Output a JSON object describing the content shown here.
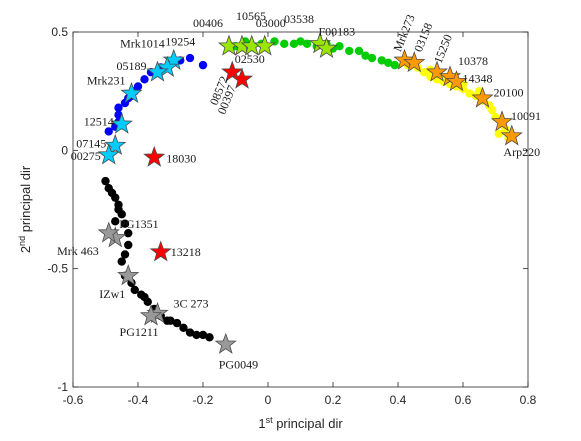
{
  "chart_data": {
    "type": "scatter",
    "xlim": [
      -0.6,
      0.8
    ],
    "ylim": [
      -1,
      0.5
    ],
    "xticks": [
      -0.6,
      -0.4,
      -0.2,
      0,
      0.2,
      0.4,
      0.6,
      0.8
    ],
    "yticks": [
      -1,
      -0.5,
      0,
      0.5
    ],
    "xtick_labels": [
      "-0.6",
      "-0.4",
      "-0.2",
      "0",
      "0.2",
      "0.4",
      "0.6",
      "0.8"
    ],
    "ytick_labels": [
      "-1",
      "-0.5",
      "0",
      "0.5"
    ],
    "xlabel": {
      "main": "1",
      "sup": "st",
      "rest": " principal dir"
    },
    "ylabel": {
      "main": "2",
      "sup": "nd",
      "rest": " principal dir"
    },
    "grid": false,
    "dot_groups": [
      {
        "color": "#0000ff",
        "points": [
          [
            -0.49,
            0.08
          ],
          [
            -0.47,
            0.1
          ],
          [
            -0.46,
            0.12
          ],
          [
            -0.46,
            0.15
          ],
          [
            -0.46,
            0.18
          ],
          [
            -0.44,
            0.2
          ],
          [
            -0.42,
            0.23
          ],
          [
            -0.4,
            0.27
          ],
          [
            -0.38,
            0.3
          ],
          [
            -0.36,
            0.33
          ],
          [
            -0.33,
            0.35
          ],
          [
            -0.3,
            0.37
          ],
          [
            -0.27,
            0.38
          ],
          [
            -0.24,
            0.39
          ],
          [
            -0.2,
            0.36
          ],
          [
            -0.41,
            0.25
          ],
          [
            -0.43,
            0.22
          ]
        ]
      },
      {
        "color": "#00cc00",
        "points": [
          [
            -0.1,
            0.44
          ],
          [
            -0.07,
            0.46
          ],
          [
            -0.05,
            0.44
          ],
          [
            -0.02,
            0.45
          ],
          [
            0.02,
            0.46
          ],
          [
            0.05,
            0.45
          ],
          [
            0.08,
            0.45
          ],
          [
            0.12,
            0.45
          ],
          [
            0.15,
            0.44
          ],
          [
            0.2,
            0.43
          ],
          [
            0.22,
            0.44
          ],
          [
            0.25,
            0.42
          ],
          [
            0.28,
            0.42
          ],
          [
            0.3,
            0.4
          ],
          [
            0.32,
            0.39
          ],
          [
            0.35,
            0.38
          ],
          [
            0.37,
            0.37
          ],
          [
            0.39,
            0.36
          ],
          [
            0.1,
            0.46
          ],
          [
            0.18,
            0.45
          ]
        ]
      },
      {
        "color": "#ffff00",
        "points": [
          [
            0.43,
            0.36
          ],
          [
            0.46,
            0.35
          ],
          [
            0.48,
            0.33
          ],
          [
            0.5,
            0.31
          ],
          [
            0.52,
            0.3
          ],
          [
            0.54,
            0.29
          ],
          [
            0.56,
            0.28
          ],
          [
            0.58,
            0.27
          ],
          [
            0.6,
            0.26
          ],
          [
            0.62,
            0.24
          ],
          [
            0.64,
            0.23
          ],
          [
            0.66,
            0.21
          ],
          [
            0.68,
            0.19
          ],
          [
            0.69,
            0.17
          ],
          [
            0.7,
            0.14
          ],
          [
            0.72,
            0.11
          ],
          [
            0.73,
            0.09
          ],
          [
            0.71,
            0.07
          ],
          [
            0.74,
            0.05
          ],
          [
            0.5,
            0.34
          ],
          [
            0.55,
            0.31
          ],
          [
            0.6,
            0.28
          ],
          [
            0.65,
            0.25
          ]
        ]
      },
      {
        "color": "#000000",
        "points": [
          [
            -0.5,
            -0.13
          ],
          [
            -0.49,
            -0.16
          ],
          [
            -0.48,
            -0.18
          ],
          [
            -0.47,
            -0.2
          ],
          [
            -0.46,
            -0.23
          ],
          [
            -0.45,
            -0.27
          ],
          [
            -0.44,
            -0.31
          ],
          [
            -0.43,
            -0.35
          ],
          [
            -0.43,
            -0.4
          ],
          [
            -0.44,
            -0.44
          ],
          [
            -0.45,
            -0.47
          ],
          [
            -0.44,
            -0.53
          ],
          [
            -0.42,
            -0.56
          ],
          [
            -0.41,
            -0.59
          ],
          [
            -0.39,
            -0.61
          ],
          [
            -0.37,
            -0.64
          ],
          [
            -0.35,
            -0.67
          ],
          [
            -0.33,
            -0.7
          ],
          [
            -0.31,
            -0.72
          ],
          [
            -0.28,
            -0.73
          ],
          [
            -0.26,
            -0.75
          ],
          [
            -0.24,
            -0.77
          ],
          [
            -0.22,
            -0.78
          ],
          [
            -0.2,
            -0.78
          ],
          [
            -0.18,
            -0.79
          ],
          [
            -0.3,
            -0.72
          ],
          [
            -0.38,
            -0.62
          ],
          [
            -0.46,
            -0.25
          ],
          [
            -0.47,
            -0.3
          ]
        ]
      }
    ],
    "star_series": [
      {
        "color": "#00ccff",
        "stars": [
          {
            "x": -0.29,
            "y": 0.38,
            "label": "Mrk1014",
            "label_anchor": "end",
            "label_dx": -9,
            "label_dy": -13,
            "label_rotate": 0
          },
          {
            "x": -0.31,
            "y": 0.35,
            "label": "19254",
            "label_anchor": "start",
            "label_dx": -2,
            "label_dy": -22,
            "label_rotate": 0
          },
          {
            "x": -0.34,
            "y": 0.33,
            "label": "05189",
            "label_anchor": "end",
            "label_dx": -11,
            "label_dy": -2,
            "label_rotate": 0
          },
          {
            "x": -0.42,
            "y": 0.24,
            "label": "Mrk231",
            "label_anchor": "end",
            "label_dx": -6,
            "label_dy": -9,
            "label_rotate": 0
          },
          {
            "x": -0.45,
            "y": 0.11,
            "label": "12514",
            "label_anchor": "end",
            "label_dx": -8,
            "label_dy": 1,
            "label_rotate": 0
          },
          {
            "x": -0.47,
            "y": 0.02,
            "label": "07145",
            "label_anchor": "end",
            "label_dx": -9,
            "label_dy": 2,
            "label_rotate": 0
          },
          {
            "x": -0.49,
            "y": -0.02,
            "label": "00275",
            "label_anchor": "end",
            "label_dx": -8,
            "label_dy": 5,
            "label_rotate": 0
          }
        ]
      },
      {
        "color": "#99e600",
        "stars": [
          {
            "x": -0.12,
            "y": 0.44,
            "label": "00406",
            "label_anchor": "end",
            "label_dx": -6,
            "label_dy": -19,
            "label_rotate": 0
          },
          {
            "x": -0.08,
            "y": 0.44,
            "label": "10565",
            "label_anchor": "start",
            "label_dx": -6,
            "label_dy": -26,
            "label_rotate": 0
          },
          {
            "x": -0.05,
            "y": 0.44,
            "label": "03000",
            "label_anchor": "start",
            "label_dx": 4,
            "label_dy": -19,
            "label_rotate": 0
          },
          {
            "x": -0.01,
            "y": 0.44,
            "label": "02530",
            "label_anchor": "end",
            "label_dx": 0,
            "label_dy": 17,
            "label_rotate": 0
          },
          {
            "x": 0.16,
            "y": 0.45,
            "label": "03538",
            "label_anchor": "end",
            "label_dx": -6,
            "label_dy": -21,
            "label_rotate": 0
          },
          {
            "x": 0.18,
            "y": 0.43,
            "label": "F00183",
            "label_anchor": "start",
            "label_dx": -8,
            "label_dy": -13,
            "label_rotate": 0
          }
        ]
      },
      {
        "color": "#ff9900",
        "stars": [
          {
            "x": 0.42,
            "y": 0.38,
            "label": "Mrk273",
            "label_anchor": "start",
            "label_dx": -4,
            "label_dy": -8,
            "label_rotate": -68
          },
          {
            "x": 0.45,
            "y": 0.37,
            "label": "03158",
            "label_anchor": "start",
            "label_dx": 7,
            "label_dy": -10,
            "label_rotate": -68
          },
          {
            "x": 0.52,
            "y": 0.33,
            "label": "15250",
            "label_anchor": "start",
            "label_dx": 4,
            "label_dy": -8,
            "label_rotate": -68
          },
          {
            "x": 0.56,
            "y": 0.31,
            "label": "10378",
            "label_anchor": "start",
            "label_dx": 8,
            "label_dy": -12,
            "label_rotate": 0
          },
          {
            "x": 0.58,
            "y": 0.29,
            "label": "14348",
            "label_anchor": "start",
            "label_dx": 6,
            "label_dy": 1,
            "label_rotate": 0
          },
          {
            "x": 0.66,
            "y": 0.22,
            "label": "20100",
            "label_anchor": "start",
            "label_dx": 11,
            "label_dy": -2,
            "label_rotate": 0
          },
          {
            "x": 0.72,
            "y": 0.12,
            "label": "10091",
            "label_anchor": "start",
            "label_dx": 9,
            "label_dy": -2,
            "label_rotate": 0
          },
          {
            "x": 0.75,
            "y": 0.06,
            "label": "Arp220",
            "label_anchor": "middle",
            "label_dx": 10,
            "label_dy": 20,
            "label_rotate": 0
          }
        ]
      },
      {
        "color": "#ff0000",
        "stars": [
          {
            "x": -0.11,
            "y": 0.33,
            "label": "08572",
            "label_anchor": "end",
            "label_dx": -4,
            "label_dy": 6,
            "label_rotate": -68
          },
          {
            "x": -0.08,
            "y": 0.3,
            "label": "00397",
            "label_anchor": "end",
            "label_dx": -6,
            "label_dy": 8,
            "label_rotate": -68
          },
          {
            "x": -0.35,
            "y": -0.03,
            "label": "18030",
            "label_anchor": "start",
            "label_dx": 12,
            "label_dy": 5,
            "label_rotate": 0
          },
          {
            "x": -0.33,
            "y": -0.43,
            "label": "13218",
            "label_anchor": "start",
            "label_dx": 10,
            "label_dy": 4,
            "label_rotate": 0
          }
        ]
      },
      {
        "color": "#999999",
        "stars": [
          {
            "x": -0.47,
            "y": -0.37,
            "label": "PG1351",
            "label_anchor": "start",
            "label_dx": 4,
            "label_dy": -10,
            "label_rotate": 0
          },
          {
            "x": -0.49,
            "y": -0.35,
            "label": "Mrk 463",
            "label_anchor": "end",
            "label_dx": -10,
            "label_dy": 22,
            "label_rotate": 0
          },
          {
            "x": -0.43,
            "y": -0.53,
            "label": "IZw1",
            "label_anchor": "end",
            "label_dx": -3,
            "label_dy": 22,
            "label_rotate": 0
          },
          {
            "x": -0.34,
            "y": -0.69,
            "label": "3C 273",
            "label_anchor": "start",
            "label_dx": 16,
            "label_dy": -6,
            "label_rotate": 0
          },
          {
            "x": -0.36,
            "y": -0.7,
            "label": "PG1211",
            "label_anchor": "middle",
            "label_dx": -12,
            "label_dy": 20,
            "label_rotate": 0
          },
          {
            "x": -0.13,
            "y": -0.82,
            "label": "PG0049",
            "label_anchor": "start",
            "label_dx": -7,
            "label_dy": 24,
            "label_rotate": 0
          }
        ]
      }
    ]
  }
}
